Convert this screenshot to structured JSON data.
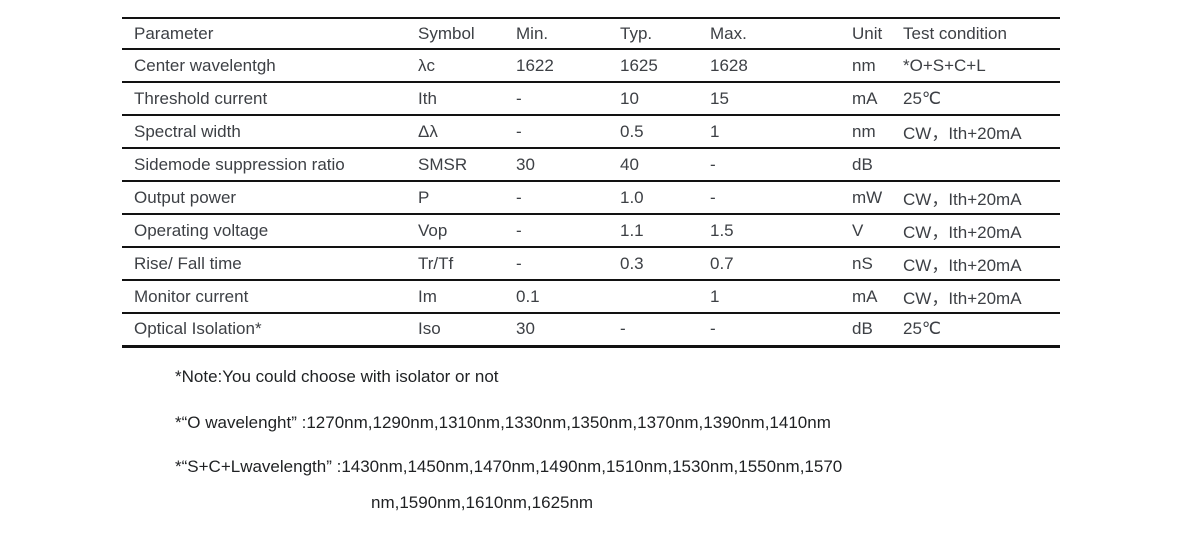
{
  "page": {
    "background_color": "#ffffff",
    "text_color": "#3d4045",
    "border_color": "#121212"
  },
  "table": {
    "headers": [
      "Parameter",
      "Symbol",
      "Min.",
      "Typ.",
      "Max.",
      "Unit",
      "Test condition"
    ],
    "rows": [
      {
        "parameter": "Center wavelentgh",
        "symbol": "λc",
        "min": "1622",
        "typ": "1625",
        "max": "1628",
        "unit": "nm",
        "test_condition": "*O+S+C+L"
      },
      {
        "parameter": "Threshold current",
        "symbol": "Ith",
        "min": "-",
        "typ": "10",
        "max": "15",
        "unit": "mA",
        "test_condition": "25℃"
      },
      {
        "parameter": "Spectral width",
        "symbol": "Δλ",
        "min": "-",
        "typ": "0.5",
        "max": "1",
        "unit": "nm",
        "test_condition": "CW，Ith+20mA"
      },
      {
        "parameter": "Sidemode suppression ratio",
        "symbol": "SMSR",
        "min": "30",
        "typ": "40",
        "max": "-",
        "unit": "dB",
        "test_condition": ""
      },
      {
        "parameter": "Output power",
        "symbol": "P",
        "min": "-",
        "typ": "1.0",
        "max": "-",
        "unit": "mW",
        "test_condition": "CW，Ith+20mA"
      },
      {
        "parameter": "Operating voltage",
        "symbol": "Vop",
        "min": "-",
        "typ": "1.1",
        "max": "1.5",
        "unit": "V",
        "test_condition": "CW，Ith+20mA"
      },
      {
        "parameter": "Rise/ Fall time",
        "symbol": "Tr/Tf",
        "min": "-",
        "typ": "0.3",
        "max": "0.7",
        "unit": "nS",
        "test_condition": "CW，Ith+20mA"
      },
      {
        "parameter": "Monitor current",
        "symbol": "Im",
        "min": "0.1",
        "typ": "",
        "max": "1",
        "unit": "mA",
        "test_condition": "CW，Ith+20mA"
      },
      {
        "parameter": "Optical Isolation*",
        "symbol": "Iso",
        "min": "30",
        "typ": "-",
        "max": "-",
        "unit": "dB",
        "test_condition": "25℃"
      }
    ]
  },
  "notes": {
    "note1": "*Note:You could choose with isolator or not",
    "note2": "*“O wavelenght” :1270nm,1290nm,1310nm,1330nm,1350nm,1370nm,1390nm,1410nm",
    "note3_line1": "*“S+C+Lwavelength”  :1430nm,1450nm,1470nm,1490nm,1510nm,1530nm,1550nm,1570",
    "note3_line2": "nm,1590nm,1610nm,1625nm"
  }
}
